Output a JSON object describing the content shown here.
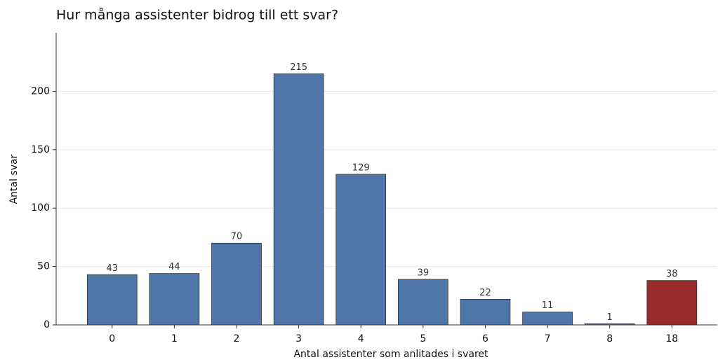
{
  "chart_data": {
    "type": "bar",
    "title": "Hur många assistenter bidrog till ett svar?",
    "xlabel": "Antal assistenter som anlitades i svaret",
    "ylabel": "Antal svar",
    "categories": [
      "0",
      "1",
      "2",
      "3",
      "4",
      "5",
      "6",
      "7",
      "8",
      "18"
    ],
    "values": [
      43,
      44,
      70,
      215,
      129,
      39,
      22,
      11,
      1,
      38
    ],
    "colors": [
      "#4e76a8",
      "#4e76a8",
      "#4e76a8",
      "#4e76a8",
      "#4e76a8",
      "#4e76a8",
      "#4e76a8",
      "#4e76a8",
      "#4e76a8",
      "#992b2b"
    ],
    "ylim": [
      0,
      250
    ],
    "yticks": [
      0,
      50,
      100,
      150,
      200
    ],
    "grid": true
  }
}
